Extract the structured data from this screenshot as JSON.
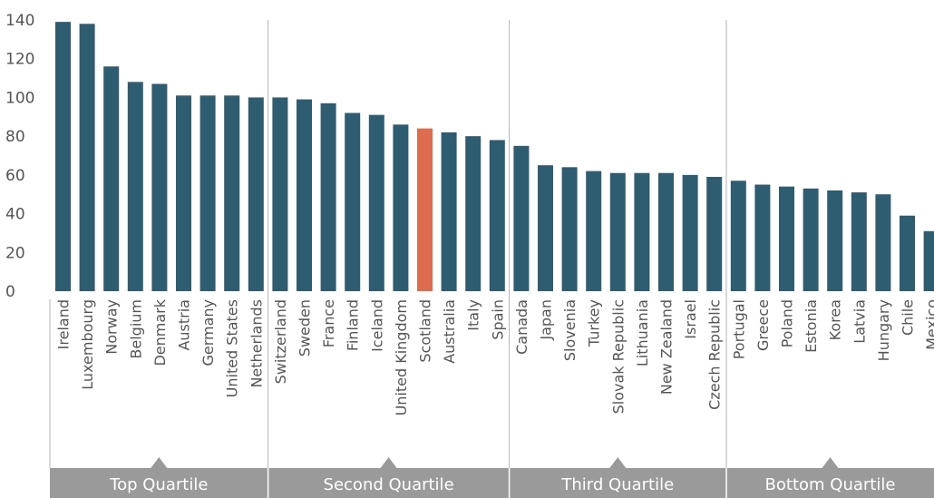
{
  "chart_data": {
    "type": "bar",
    "title": "",
    "xlabel": "",
    "ylabel": "",
    "ylim": [
      0,
      140
    ],
    "yticks": [
      0,
      20,
      40,
      60,
      80,
      100,
      120,
      140
    ],
    "grid": false,
    "categories": [
      "Ireland",
      "Luxembourg",
      "Norway",
      "Belgium",
      "Denmark",
      "Austria",
      "Germany",
      "United States",
      "Netherlands",
      "Switzerland",
      "Sweden",
      "France",
      "Finland",
      "Iceland",
      "United Kingdom",
      "Scotland",
      "Australia",
      "Italy",
      "Spain",
      "Canada",
      "Japan",
      "Slovenia",
      "Turkey",
      "Slovak Republic",
      "Lithuania",
      "New Zealand",
      "Israel",
      "Czech Republic",
      "Portugal",
      "Greece",
      "Poland",
      "Estonia",
      "Korea",
      "Latvia",
      "Hungary",
      "Chile",
      "Mexico"
    ],
    "values": [
      139,
      138,
      116,
      108,
      107,
      101,
      101,
      101,
      100,
      100,
      99,
      97,
      92,
      91,
      86,
      84,
      82,
      80,
      78,
      75,
      65,
      64,
      62,
      61,
      61,
      61,
      60,
      59,
      57,
      55,
      54,
      53,
      52,
      51,
      50,
      39,
      31
    ],
    "highlight": "Scotland",
    "colors": {
      "bar": "#2e5c70",
      "highlight": "#e06c4f",
      "band": "#9a9a9a",
      "divider": "#b5b5b5",
      "axis_text": "#555555"
    },
    "quartiles": [
      {
        "label": "Top Quartile",
        "start": 0,
        "end": 8
      },
      {
        "label": "Second Quartile",
        "start": 9,
        "end": 18
      },
      {
        "label": "Third Quartile",
        "start": 19,
        "end": 27
      },
      {
        "label": "Bottom Quartile",
        "start": 28,
        "end": 36
      }
    ]
  }
}
